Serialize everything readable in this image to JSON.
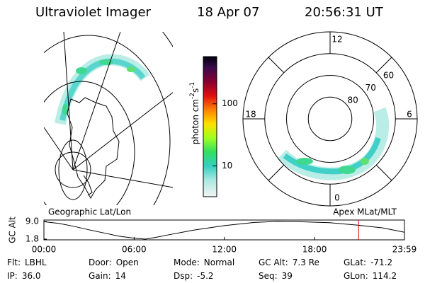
{
  "header": {
    "title": "Ultraviolet Imager",
    "date": "18 Apr 07",
    "time": "20:56:31 UT"
  },
  "colorbar": {
    "label": "photon cm",
    "exp1": "-2",
    "unit2": "s",
    "exp2": "-1",
    "scale": "log",
    "clim": [
      3.2,
      575
    ],
    "ticks": [
      10,
      100
    ]
  },
  "left_map": {
    "label": "Geographic Lat/Lon"
  },
  "polar_map": {
    "label": "Apex MLat/MLT",
    "rlim": [
      90,
      50
    ],
    "lat_labels": [
      80,
      70,
      60
    ],
    "mlt_labels": [
      12,
      6,
      0,
      18
    ]
  },
  "chart_data": {
    "type": "line",
    "ylabel": "GC Alt",
    "x": [
      0,
      1,
      2,
      3,
      4,
      5,
      6,
      6.75,
      7.5,
      8.5,
      10,
      12,
      14,
      15.5,
      17,
      19,
      21,
      22.5,
      23.98
    ],
    "series": [
      {
        "color": "#000000",
        "values": [
          8.9,
          8.2,
          7.0,
          5.6,
          4.3,
          3.0,
          2.2,
          1.8,
          2.6,
          3.8,
          5.5,
          7.3,
          8.6,
          9.0,
          8.9,
          8.5,
          7.4,
          6.4,
          4.6
        ]
      }
    ],
    "xlim": [
      0,
      23.98
    ],
    "xticks": [
      {
        "value": 0,
        "label": "00:00"
      },
      {
        "value": 6,
        "label": "06:00"
      },
      {
        "value": 12,
        "label": "12:00"
      },
      {
        "value": 18,
        "label": "18:00"
      },
      {
        "value": 23.98,
        "label": "23:59"
      }
    ],
    "ylim": [
      1.8,
      9.0
    ],
    "yticks": [
      1.8,
      {
        "value": 9.0,
        "label": "9.0"
      }
    ],
    "marker": {
      "value": 20.93,
      "color": "#e00000"
    }
  },
  "footer": {
    "rows": [
      [
        {
          "label": "Flt:",
          "value": "LBHL"
        },
        {
          "label": "Door:",
          "value": "Open"
        },
        {
          "label": "Mode:",
          "value": "Normal"
        },
        {
          "label": "GC Alt:",
          "value": "7.3 Re"
        },
        {
          "label": "GLat:",
          "value": "-71.2"
        }
      ],
      [
        {
          "label": "IP:",
          "value": "36.0"
        },
        {
          "label": "Gain:",
          "value": "14"
        },
        {
          "label": "Dsp:",
          "value": "-5.2"
        },
        {
          "label": "Seq:",
          "value": "39"
        },
        {
          "label": "GLon:",
          "value": "114.2"
        }
      ]
    ]
  }
}
